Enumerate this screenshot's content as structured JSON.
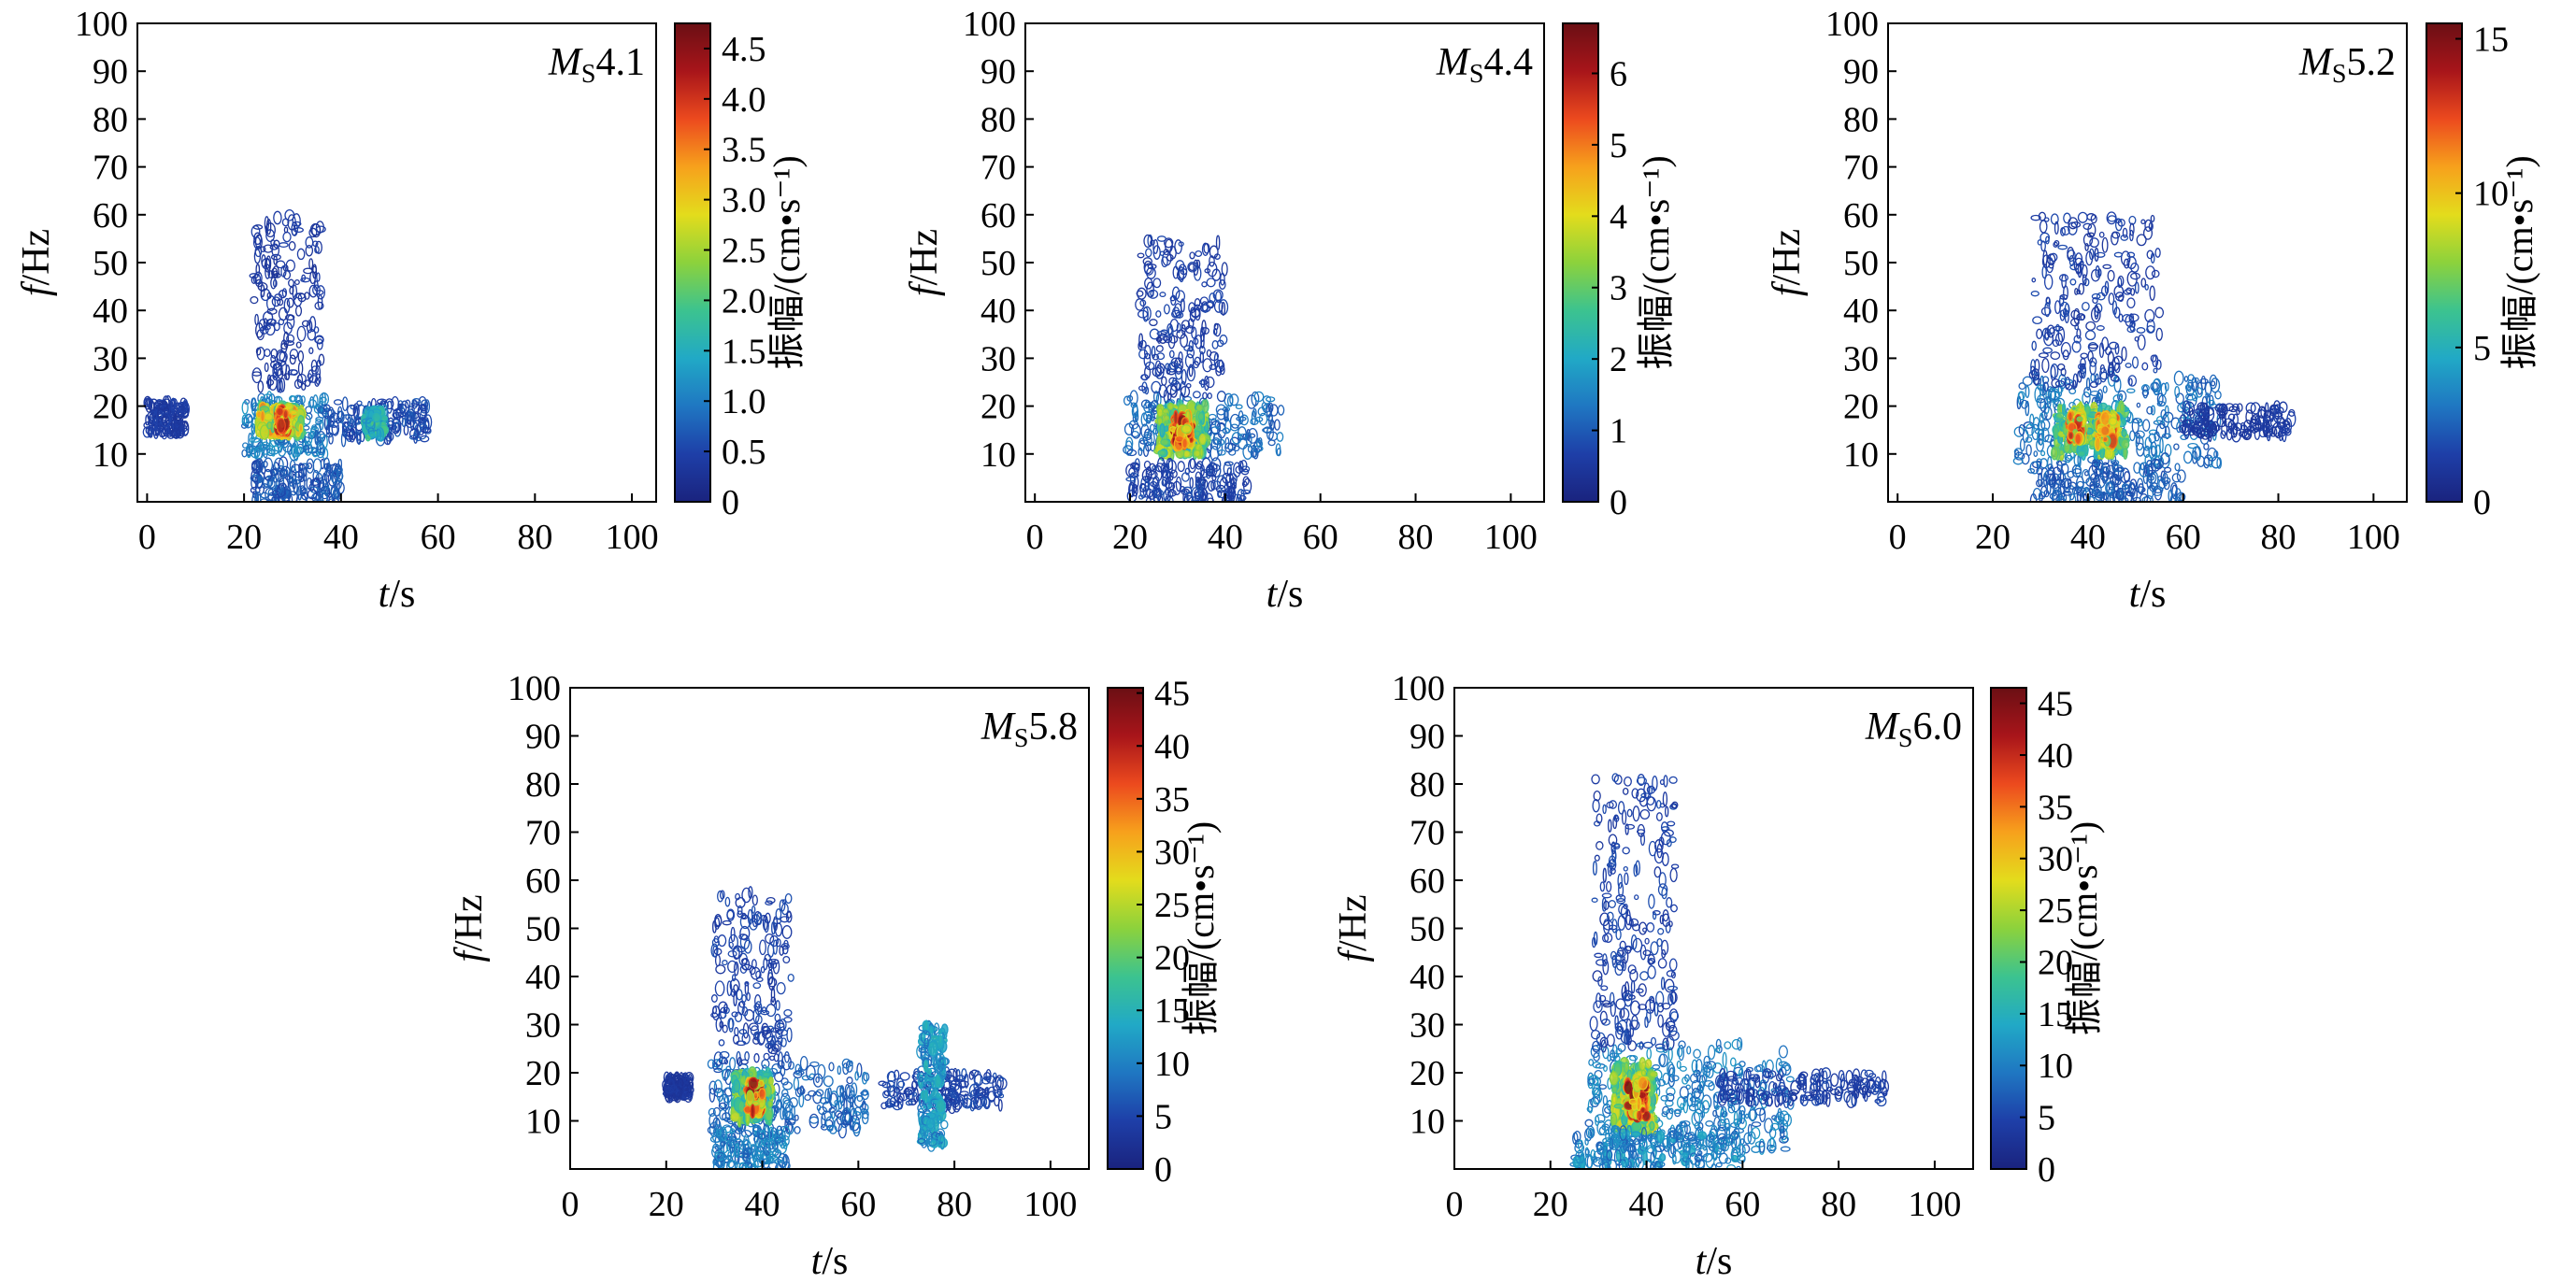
{
  "figure": {
    "background": "#ffffff",
    "colormap": [
      "#1a237e",
      "#1e3fa8",
      "#1f77c2",
      "#21a9c6",
      "#3cc38f",
      "#8cd23c",
      "#e3dc1c",
      "#f7a11c",
      "#ec4a1e",
      "#a8151a",
      "#6b0f14"
    ],
    "contour_color": "#2a3a9c"
  },
  "chart_data": [
    {
      "type": "heatmap",
      "panel": "Ms4.1",
      "annotation": {
        "main": "M",
        "sub": "S",
        "value": "4.1"
      },
      "xlabel": {
        "var": "t",
        "unit": "/s"
      },
      "ylabel": {
        "var": "f",
        "unit": "/Hz"
      },
      "xlim": [
        -2,
        105
      ],
      "ylim": [
        0,
        100
      ],
      "xticks": [
        0,
        20,
        40,
        60,
        80,
        100
      ],
      "yticks": [
        10,
        20,
        30,
        40,
        50,
        60,
        70,
        80,
        90,
        100
      ],
      "colorbar": {
        "label": "振幅/(cm•s⁻¹)",
        "min": 0,
        "max": 4.75,
        "ticks": [
          0,
          0.5,
          1.0,
          1.5,
          2.0,
          2.5,
          3.0,
          3.5,
          4.0,
          4.5
        ],
        "tick_labels": [
          "0",
          "0.5",
          "1.0",
          "1.5",
          "2.0",
          "2.5",
          "3.0",
          "3.5",
          "4.0",
          "4.5"
        ]
      },
      "energy_blobs": [
        {
          "t": [
            0,
            8
          ],
          "f": [
            14,
            21
          ],
          "level": 0.12
        },
        {
          "t": [
            20,
            37
          ],
          "f": [
            10,
            22
          ],
          "level": 0.3
        },
        {
          "t": [
            23,
            32
          ],
          "f": [
            14,
            20
          ],
          "level": 0.75
        },
        {
          "t": [
            27,
            29
          ],
          "f": [
            15,
            19
          ],
          "level": 1.0
        },
        {
          "t": [
            22,
            36
          ],
          "f": [
            24,
            60
          ],
          "level": 0.12
        },
        {
          "t": [
            37,
            58
          ],
          "f": [
            13,
            21
          ],
          "level": 0.18
        },
        {
          "t": [
            45,
            49
          ],
          "f": [
            14,
            19
          ],
          "level": 0.45
        },
        {
          "t": [
            22,
            40
          ],
          "f": [
            0,
            8
          ],
          "level": 0.2
        }
      ]
    },
    {
      "type": "heatmap",
      "panel": "Ms4.4",
      "annotation": {
        "main": "M",
        "sub": "S",
        "value": "4.4"
      },
      "xlabel": {
        "var": "t",
        "unit": "/s"
      },
      "ylabel": {
        "var": "f",
        "unit": "/Hz"
      },
      "xlim": [
        -2,
        107
      ],
      "ylim": [
        0,
        100
      ],
      "xticks": [
        0,
        20,
        40,
        60,
        80,
        100
      ],
      "yticks": [
        10,
        20,
        30,
        40,
        50,
        60,
        70,
        80,
        90,
        100
      ],
      "colorbar": {
        "label": "振幅/(cm•s⁻¹)",
        "min": 0,
        "max": 6.7,
        "ticks": [
          0,
          1,
          2,
          3,
          4,
          5,
          6
        ],
        "tick_labels": [
          "0",
          "1",
          "2",
          "3",
          "4",
          "5",
          "6"
        ]
      },
      "energy_blobs": [
        {
          "t": [
            19,
            52
          ],
          "f": [
            10,
            22
          ],
          "level": 0.25
        },
        {
          "t": [
            26,
            36
          ],
          "f": [
            10,
            20
          ],
          "level": 0.6
        },
        {
          "t": [
            29,
            33
          ],
          "f": [
            12,
            18
          ],
          "level": 1.0
        },
        {
          "t": [
            22,
            40
          ],
          "f": [
            22,
            55
          ],
          "level": 0.14
        },
        {
          "t": [
            20,
            45
          ],
          "f": [
            0,
            8
          ],
          "level": 0.15
        }
      ]
    },
    {
      "type": "heatmap",
      "panel": "Ms5.2",
      "annotation": {
        "main": "M",
        "sub": "S",
        "value": "5.2"
      },
      "xlabel": {
        "var": "t",
        "unit": "/s"
      },
      "ylabel": {
        "var": "f",
        "unit": "/Hz"
      },
      "xlim": [
        -2,
        107
      ],
      "ylim": [
        0,
        100
      ],
      "xticks": [
        0,
        20,
        40,
        60,
        80,
        100
      ],
      "yticks": [
        10,
        20,
        30,
        40,
        50,
        60,
        70,
        80,
        90,
        100
      ],
      "colorbar": {
        "label": "振幅/(cm•s⁻¹)",
        "min": 0,
        "max": 15.5,
        "ticks": [
          0,
          5,
          10,
          15
        ],
        "tick_labels": [
          "0",
          "5",
          "10",
          "15"
        ]
      },
      "energy_blobs": [
        {
          "t": [
            25,
            68
          ],
          "f": [
            8,
            26
          ],
          "level": 0.28
        },
        {
          "t": [
            33,
            48
          ],
          "f": [
            10,
            20
          ],
          "level": 0.6
        },
        {
          "t": [
            36,
            39
          ],
          "f": [
            13,
            18
          ],
          "level": 0.9
        },
        {
          "t": [
            42,
            46
          ],
          "f": [
            12,
            18
          ],
          "level": 0.85
        },
        {
          "t": [
            28,
            55
          ],
          "f": [
            24,
            60
          ],
          "level": 0.14
        },
        {
          "t": [
            60,
            83
          ],
          "f": [
            14,
            20
          ],
          "level": 0.12
        },
        {
          "t": [
            28,
            60
          ],
          "f": [
            0,
            8
          ],
          "level": 0.22
        }
      ]
    },
    {
      "type": "heatmap",
      "panel": "Ms5.8",
      "annotation": {
        "main": "M",
        "sub": "S",
        "value": "5.8"
      },
      "xlabel": {
        "var": "t",
        "unit": "/s"
      },
      "ylabel": {
        "var": "f",
        "unit": "/Hz"
      },
      "xlim": [
        0,
        108
      ],
      "ylim": [
        0,
        100
      ],
      "xticks": [
        0,
        20,
        40,
        60,
        80,
        100
      ],
      "yticks": [
        10,
        20,
        30,
        40,
        50,
        60,
        70,
        80,
        90,
        100
      ],
      "colorbar": {
        "label": "振幅/(cm•s⁻¹)",
        "min": 0,
        "max": 45.5,
        "ticks": [
          0,
          5,
          10,
          15,
          20,
          25,
          30,
          35,
          40,
          45
        ],
        "tick_labels": [
          "0",
          "5",
          "10",
          "15",
          "20",
          "25",
          "30",
          "35",
          "40",
          "45"
        ]
      },
      "energy_blobs": [
        {
          "t": [
            29,
            62
          ],
          "f": [
            8,
            22
          ],
          "level": 0.25
        },
        {
          "t": [
            34,
            42
          ],
          "f": [
            10,
            20
          ],
          "level": 0.6
        },
        {
          "t": [
            37,
            40
          ],
          "f": [
            12,
            18
          ],
          "level": 1.0
        },
        {
          "t": [
            30,
            46
          ],
          "f": [
            22,
            58
          ],
          "level": 0.15
        },
        {
          "t": [
            65,
            90
          ],
          "f": [
            13,
            20
          ],
          "level": 0.15
        },
        {
          "t": [
            73,
            78
          ],
          "f": [
            5,
            30
          ],
          "level": 0.35
        },
        {
          "t": [
            30,
            45
          ],
          "f": [
            0,
            8
          ],
          "level": 0.3
        },
        {
          "t": [
            20,
            25
          ],
          "f": [
            15,
            19
          ],
          "level": 0.1
        }
      ]
    },
    {
      "type": "heatmap",
      "panel": "Ms6.0",
      "annotation": {
        "main": "M",
        "sub": "S",
        "value": "6.0"
      },
      "xlabel": {
        "var": "t",
        "unit": "/s"
      },
      "ylabel": {
        "var": "f",
        "unit": "/Hz"
      },
      "xlim": [
        0,
        108
      ],
      "ylim": [
        0,
        100
      ],
      "xticks": [
        0,
        20,
        40,
        60,
        80,
        100
      ],
      "yticks": [
        10,
        20,
        30,
        40,
        50,
        60,
        70,
        80,
        90,
        100
      ],
      "colorbar": {
        "label": "振幅/(cm•s⁻¹)",
        "min": 0,
        "max": 46.5,
        "ticks": [
          0,
          5,
          10,
          15,
          20,
          25,
          30,
          35,
          40,
          45
        ],
        "tick_labels": [
          "0",
          "5",
          "10",
          "15",
          "20",
          "25",
          "30",
          "35",
          "40",
          "45"
        ]
      },
      "energy_blobs": [
        {
          "t": [
            28,
            70
          ],
          "f": [
            4,
            26
          ],
          "level": 0.3
        },
        {
          "t": [
            33,
            42
          ],
          "f": [
            8,
            22
          ],
          "level": 0.65
        },
        {
          "t": [
            36,
            40
          ],
          "f": [
            11,
            18
          ],
          "level": 1.0
        },
        {
          "t": [
            29,
            46
          ],
          "f": [
            25,
            82
          ],
          "level": 0.15
        },
        {
          "t": [
            55,
            90
          ],
          "f": [
            14,
            20
          ],
          "level": 0.14
        },
        {
          "t": [
            25,
            60
          ],
          "f": [
            0,
            8
          ],
          "level": 0.32
        }
      ]
    }
  ]
}
